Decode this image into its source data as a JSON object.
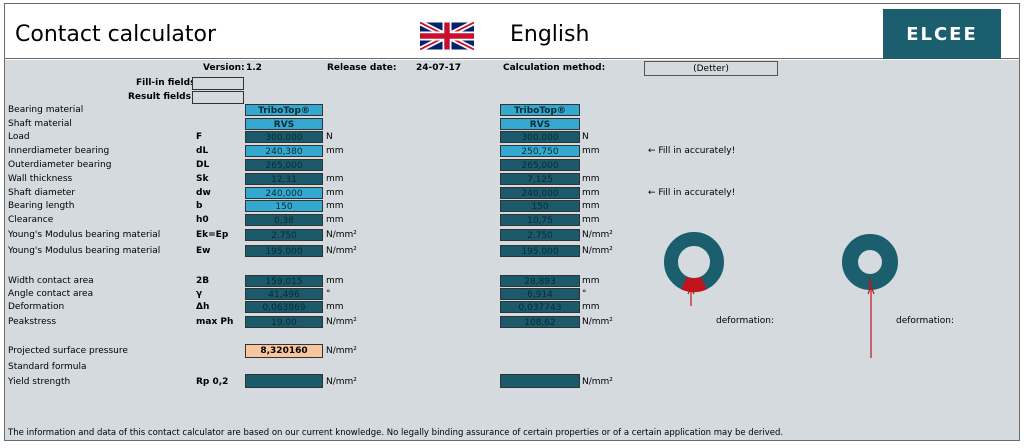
{
  "header": {
    "title": "Contact calculator",
    "language": "English",
    "logo": "ELCEE"
  },
  "meta": {
    "version_label": "Version:",
    "version": "1.2",
    "release_label": "Release date:",
    "release": "24-07-17",
    "method_label": "Calculation method:",
    "method": "(Detter)",
    "fillin_label": "Fill-in fields:",
    "result_label": "Result fields:"
  },
  "rows": [
    {
      "label": "Bearing material",
      "sym": "",
      "a": "TriboTop®",
      "unit_a": "",
      "b": "TriboTop®",
      "unit_b": "",
      "note": ""
    },
    {
      "label": "Shaft material",
      "sym": "",
      "a": "RVS",
      "unit_a": "",
      "b": "RVS",
      "unit_b": "",
      "note": ""
    },
    {
      "label": "Load",
      "sym": "F",
      "a": "300.000",
      "unit_a": "N",
      "b": "300.000",
      "unit_b": "N",
      "note": ""
    },
    {
      "label": "Innerdiameter bearing",
      "sym": "dL",
      "a": "240,380",
      "unit_a": "mm",
      "b": "250,750",
      "unit_b": "mm",
      "note": "← Fill in accurately!"
    },
    {
      "label": "Outerdiameter bearing",
      "sym": "DL",
      "a": "265,000",
      "unit_a": "",
      "b": "265,000",
      "unit_b": "",
      "note": ""
    },
    {
      "label": "Wall thickness",
      "sym": "Sk",
      "a": "12,31",
      "unit_a": "mm",
      "b": "7,125",
      "unit_b": "mm",
      "note": ""
    },
    {
      "label": "Shaft diameter",
      "sym": "dw",
      "a": "240,000",
      "unit_a": "mm",
      "b": "240,000",
      "unit_b": "mm",
      "note": "← Fill in accurately!"
    },
    {
      "label": "Bearing length",
      "sym": "b",
      "a": "150",
      "unit_a": "mm",
      "b": "150",
      "unit_b": "mm",
      "note": ""
    },
    {
      "label": "Clearance",
      "sym": "h0",
      "a": "0,38",
      "unit_a": "mm",
      "b": "10,75",
      "unit_b": "mm",
      "note": ""
    },
    {
      "label": "Young's Modulus bearing material",
      "sym": "Ek=Ep",
      "a": "2.750",
      "unit_a": "N/mm²",
      "b": "2.750",
      "unit_b": "N/mm²",
      "note": ""
    },
    {
      "label": "Young's Modulus bearing material",
      "sym": "Ew",
      "a": "195.000",
      "unit_a": "N/mm²",
      "b": "195.000",
      "unit_b": "N/mm²",
      "note": ""
    }
  ],
  "results": [
    {
      "label": "Width contact area",
      "sym": "2B",
      "a": "159,015",
      "unit_a": "mm",
      "b": "28,893",
      "unit_b": "mm"
    },
    {
      "label": "Angle contact area",
      "sym": "γ",
      "a": "41,496",
      "unit_a": "°",
      "b": "6,914",
      "unit_b": "°"
    },
    {
      "label": "Deformation",
      "sym": "Δh",
      "a": "0,063869",
      "unit_a": "mm",
      "b": "0,037743",
      "unit_b": "mm"
    },
    {
      "label": "Peakstress",
      "sym": "max Ph",
      "a": "19,00",
      "unit_a": "N/mm²",
      "b": "108,62",
      "unit_b": "N/mm²"
    }
  ],
  "projected": {
    "label": "Projected surface pressure",
    "value": "8,320160",
    "unit": "N/mm²"
  },
  "standard": {
    "label": "Standard formula"
  },
  "yield": {
    "label": "Yield strength",
    "sym": "Rp 0,2",
    "unit_a": "N/mm²",
    "unit_b": "N/mm²"
  },
  "deformation_label": "deformation:",
  "footer": "The information and data of this contact calculator are based on our current knowledge. No legally binding assurance of certain properties or of a certain application may be derived.",
  "colors": {
    "dark": "#1b5a6b",
    "light": "#35a8d0",
    "orange": "#f7c69d",
    "teal": "#1b5e6e",
    "red": "#c0141c"
  }
}
